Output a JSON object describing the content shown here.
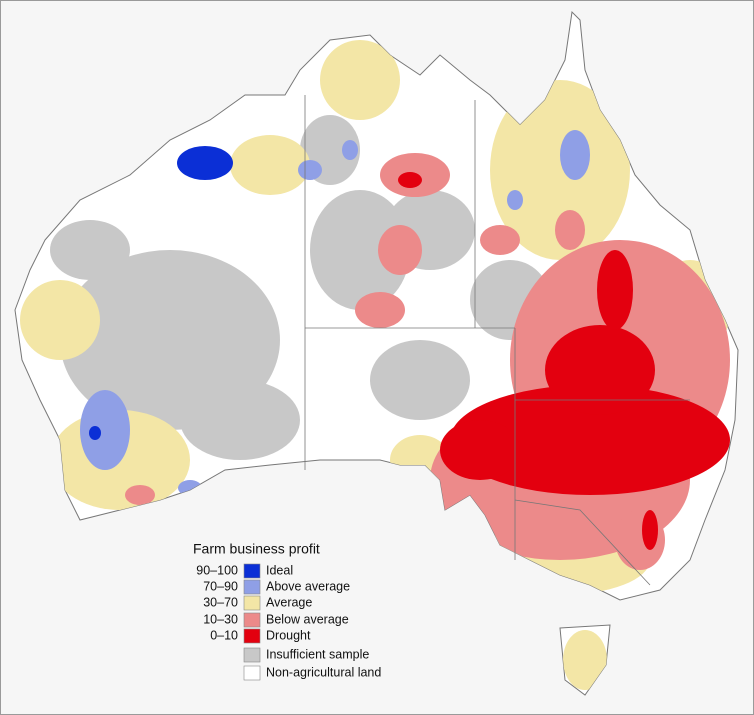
{
  "legend": {
    "title": "Farm business profit",
    "items": [
      {
        "range": "90–100",
        "label": "Ideal",
        "color": "#0b2fd6"
      },
      {
        "range": "70–90",
        "label": "Above average",
        "color": "#8f9fe6"
      },
      {
        "range": "30–70",
        "label": "Average",
        "color": "#f3e6a6"
      },
      {
        "range": "10–30",
        "label": "Below average",
        "color": "#ec8a8a"
      },
      {
        "range": "0–10",
        "label": "Drought",
        "color": "#e3000f"
      },
      {
        "label": "Insufficient sample",
        "color": "#c8c8c8"
      },
      {
        "label": "Non-agricultural land",
        "color": "#ffffff"
      }
    ]
  }
}
